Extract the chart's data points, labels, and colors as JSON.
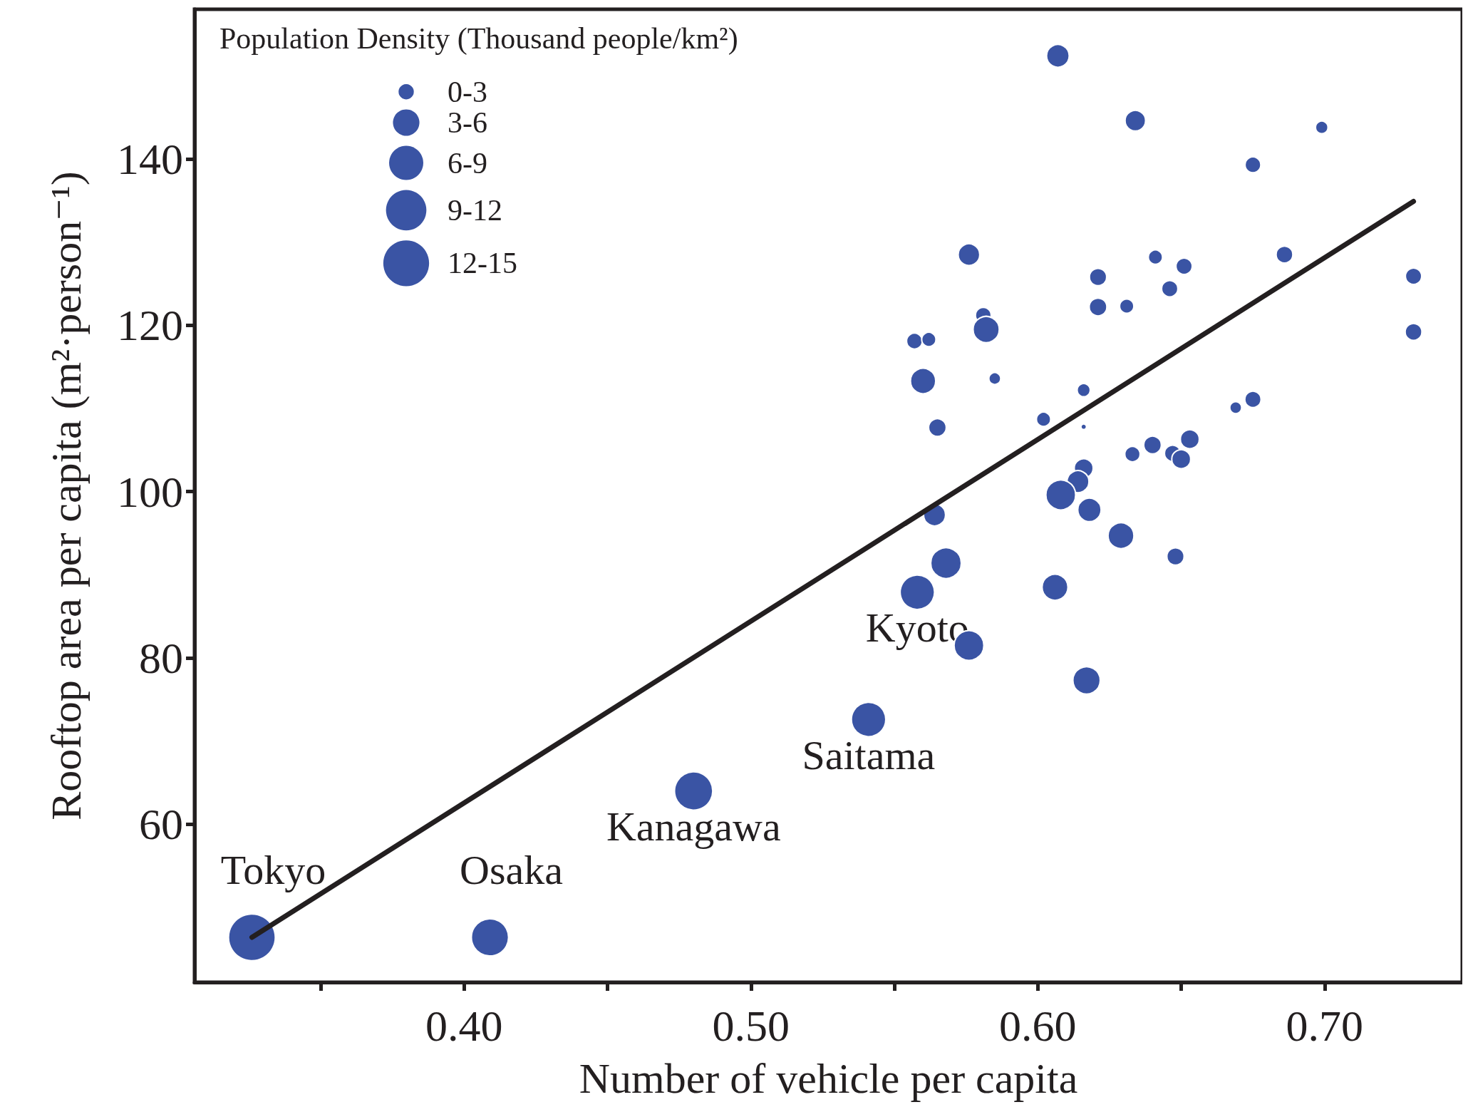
{
  "chart_data": {
    "type": "bubble",
    "xlabel": "Number of vehicle per capita",
    "ylabel": "Rooftop area per capita (m²·person⁻¹)",
    "legend_title": "Population Density (Thousand people/km²)",
    "grid": false,
    "xlim": [
      0.306,
      0.748
    ],
    "ylim": [
      41,
      158
    ],
    "xticks": [
      {
        "value": 0.35,
        "label": null
      },
      {
        "value": 0.4,
        "label": "0.40"
      },
      {
        "value": 0.45,
        "label": null
      },
      {
        "value": 0.5,
        "label": "0.50"
      },
      {
        "value": 0.55,
        "label": null
      },
      {
        "value": 0.6,
        "label": "0.60"
      },
      {
        "value": 0.65,
        "label": null
      },
      {
        "value": 0.7,
        "label": "0.70"
      }
    ],
    "yticks": [
      60,
      80,
      100,
      120,
      140
    ],
    "size_legend": [
      {
        "value": 1.5,
        "label": "0-3"
      },
      {
        "value": 4.5,
        "label": "3-6"
      },
      {
        "value": 7.5,
        "label": "6-9"
      },
      {
        "value": 10.5,
        "label": "9-12"
      },
      {
        "value": 13.5,
        "label": "12-15"
      }
    ],
    "series": [
      {
        "color": "#3a54a4",
        "x": [
          0.607,
          0.634,
          0.699,
          0.675,
          0.576,
          0.641,
          0.651,
          0.686,
          0.621,
          0.731,
          0.646,
          0.621,
          0.631,
          0.581,
          0.582,
          0.557,
          0.562,
          0.56,
          0.585,
          0.616,
          0.731,
          0.675,
          0.669,
          0.565,
          0.602,
          0.616,
          0.633,
          0.64,
          0.653,
          0.647,
          0.65,
          0.616,
          0.614,
          0.608,
          0.618,
          0.564,
          0.629,
          0.648,
          0.568,
          0.558,
          0.606,
          0.576,
          0.617,
          0.541,
          0.48,
          0.409,
          0.326
        ],
        "values": [
          152.4,
          144.6,
          143.8,
          139.3,
          128.5,
          128.2,
          127.1,
          128.5,
          125.8,
          125.9,
          124.4,
          122.2,
          122.3,
          121.2,
          119.5,
          118.1,
          118.3,
          113.3,
          113.6,
          112.2,
          119.2,
          111.1,
          110.1,
          107.7,
          108.7,
          107.8,
          104.5,
          105.6,
          106.3,
          104.6,
          103.9,
          102.8,
          101.2,
          99.6,
          97.8,
          97.2,
          94.7,
          92.2,
          91.4,
          87.9,
          88.5,
          81.5,
          77.3,
          72.6,
          64.0,
          46.4,
          46.4
        ],
        "sizes": [
          3.3,
          2.7,
          1.0,
          1.6,
          3.0,
          1.3,
          1.7,
          1.8,
          1.9,
          1.7,
          1.7,
          2.0,
          1.3,
          1.6,
          4.4,
          1.6,
          1.3,
          4.1,
          0.9,
          1.1,
          1.8,
          1.7,
          0.9,
          2.0,
          1.3,
          0.2,
          1.5,
          2.0,
          2.3,
          1.7,
          2.3,
          2.3,
          3.1,
          5.7,
          3.5,
          3.1,
          4.3,
          1.9,
          6.0,
          7.6,
          4.3,
          5.7,
          4.8,
          7.6,
          9.4,
          8.9,
          14.1
        ]
      },
      {
        "type": "line",
        "color": "#231f20",
        "x": [
          0.326,
          0.731
        ],
        "values": [
          46.4,
          134.9
        ]
      }
    ],
    "annotations": [
      {
        "text": "Tokyo",
        "x": 0.326,
        "y": 46.4
      },
      {
        "text": "Osaka",
        "x": 0.409,
        "y": 46.4
      },
      {
        "text": "Kanagawa",
        "x": 0.48,
        "y": 64.0
      },
      {
        "text": "Saitama",
        "x": 0.541,
        "y": 72.6
      },
      {
        "text": "Kyoto",
        "x": 0.558,
        "y": 87.9
      }
    ]
  }
}
